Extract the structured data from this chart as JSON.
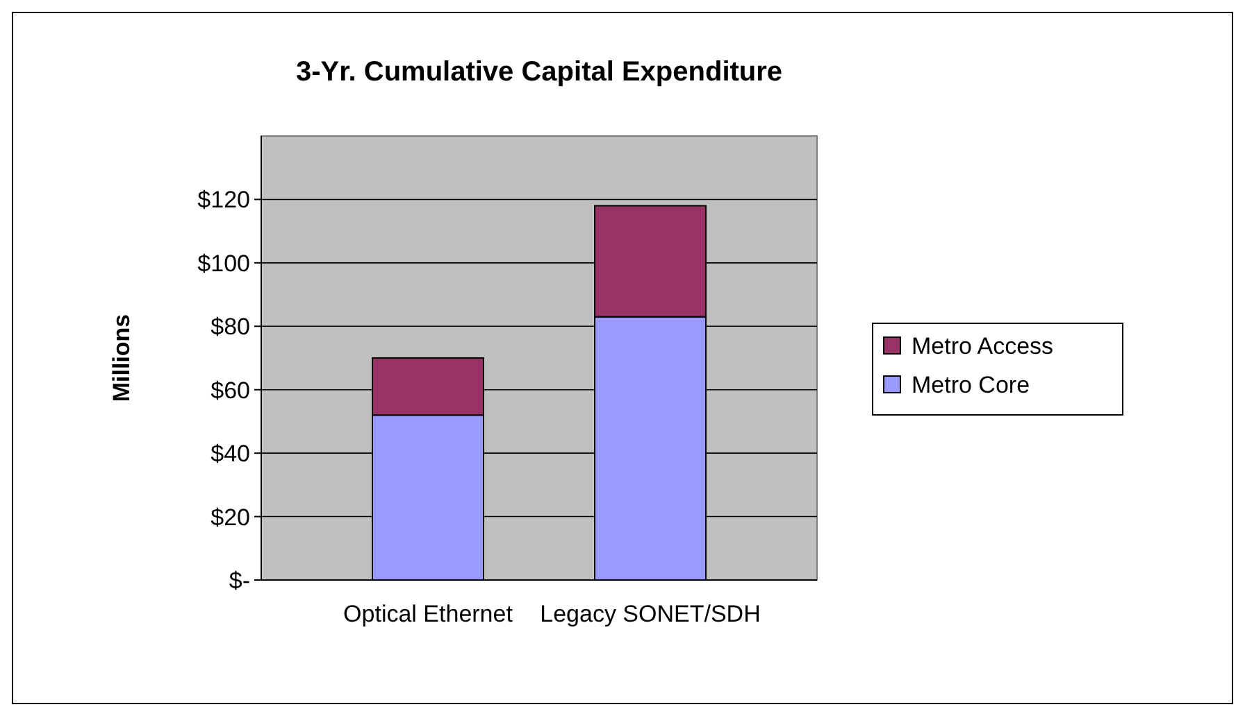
{
  "chart_data": {
    "type": "bar",
    "title": "3-Yr. Cumulative Capital Expenditure",
    "ylabel": "Millions",
    "categories": [
      "Optical Ethernet",
      "Legacy SONET/SDH"
    ],
    "stacked": true,
    "series": [
      {
        "name": "Metro Core",
        "color": "#9999ff",
        "values": [
          52,
          83
        ]
      },
      {
        "name": "Metro Access",
        "color": "#993366",
        "values": [
          18,
          35
        ]
      }
    ],
    "ylim": [
      0,
      140
    ],
    "yticks": [
      {
        "value": 0,
        "label": "$-"
      },
      {
        "value": 20,
        "label": "$20"
      },
      {
        "value": 40,
        "label": "$40"
      },
      {
        "value": 60,
        "label": "$60"
      },
      {
        "value": 80,
        "label": "$80"
      },
      {
        "value": 100,
        "label": "$100"
      },
      {
        "value": 120,
        "label": "$120"
      }
    ],
    "grid": "y",
    "legend": "right"
  }
}
